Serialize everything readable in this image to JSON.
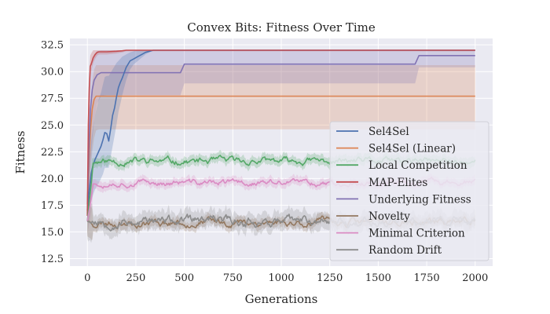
{
  "chart_data": {
    "type": "line",
    "title": "Convex Bits: Fitness Over Time",
    "xlabel": "Generations",
    "ylabel": "Fitness",
    "xlim": [
      -90,
      2090
    ],
    "ylim": [
      11.8,
      33.1
    ],
    "xticks": [
      0,
      250,
      500,
      750,
      1000,
      1250,
      1500,
      1750,
      2000
    ],
    "yticks": [
      12.5,
      15.0,
      17.5,
      20.0,
      22.5,
      25.0,
      27.5,
      30.0,
      32.5
    ],
    "ytick_labels": [
      "12.5",
      "15.0",
      "17.5",
      "20.0",
      "22.5",
      "25.0",
      "27.5",
      "30.0",
      "32.5"
    ],
    "grid": true,
    "legend_position": "center-right",
    "series": [
      {
        "name": "Sel4Sel",
        "color": "#4c72b0",
        "x": [
          0,
          10,
          20,
          30,
          40,
          50,
          60,
          70,
          80,
          90,
          100,
          110,
          120,
          130,
          140,
          150,
          160,
          170,
          180,
          190,
          200,
          220,
          240,
          260,
          280,
          300,
          320,
          340,
          360,
          400,
          2000
        ],
        "y": [
          17.0,
          19.0,
          20.5,
          21.3,
          21.8,
          22.2,
          22.6,
          23.0,
          23.6,
          24.3,
          24.2,
          23.5,
          24.6,
          25.9,
          26.6,
          27.6,
          28.5,
          29.0,
          29.4,
          29.9,
          30.4,
          31.0,
          31.2,
          31.4,
          31.6,
          31.8,
          31.9,
          32.0,
          32.0,
          32.0,
          32.0
        ],
        "band_low": [
          16.0,
          17.0,
          17.8,
          18.5,
          19.0,
          19.3,
          19.6,
          20.0,
          20.4,
          21.0,
          21.0,
          21.0,
          22.0,
          23.0,
          24.0,
          25.0,
          26.2,
          27.0,
          27.8,
          28.5,
          29.2,
          30.2,
          30.7,
          31.0,
          31.3,
          31.6,
          31.8,
          32.0,
          32.0,
          32.0,
          32.0
        ],
        "band_high": [
          18.0,
          21.5,
          23.5,
          25.0,
          26.0,
          26.8,
          27.5,
          28.0,
          28.8,
          29.5,
          29.6,
          29.6,
          29.9,
          30.2,
          30.5,
          30.8,
          31.0,
          31.2,
          31.4,
          31.5,
          31.6,
          31.8,
          31.9,
          32.0,
          32.0,
          32.0,
          32.0,
          32.0,
          32.0,
          32.0,
          32.0
        ]
      },
      {
        "name": "Sel4Sel (Linear)",
        "color": "#dd8452",
        "x": [
          0,
          8,
          16,
          25,
          35,
          45,
          60,
          2000
        ],
        "y": [
          17.6,
          21.5,
          24.5,
          26.5,
          27.4,
          27.7,
          27.7,
          27.7
        ],
        "band_low": [
          17.0,
          18.5,
          20.5,
          22.5,
          23.8,
          24.5,
          24.6,
          24.6
        ],
        "band_high": [
          18.0,
          24.0,
          27.0,
          29.0,
          30.2,
          30.6,
          30.6,
          30.6
        ]
      },
      {
        "name": "Local Competition",
        "color": "#55a868",
        "base": 21.6,
        "noise": 0.25,
        "band": 0.45,
        "seed": 11
      },
      {
        "name": "MAP-Elites",
        "color": "#c44e52",
        "x": [
          0,
          5,
          10,
          15,
          20,
          30,
          40,
          50,
          60,
          70,
          100,
          150,
          180,
          200,
          2000
        ],
        "y": [
          16.5,
          25.0,
          28.5,
          30.5,
          30.7,
          31.3,
          31.6,
          31.8,
          31.85,
          31.85,
          31.85,
          31.9,
          31.95,
          32.0,
          32.0
        ],
        "band_low": [
          16.0,
          21.0,
          26.0,
          29.0,
          30.0,
          30.8,
          31.2,
          31.5,
          31.6,
          31.6,
          31.6,
          31.7,
          31.8,
          31.9,
          31.9
        ],
        "band_high": [
          17.0,
          28.0,
          30.5,
          31.5,
          31.7,
          32.0,
          32.0,
          32.0,
          32.0,
          32.0,
          32.0,
          32.0,
          32.0,
          32.0,
          32.0
        ]
      },
      {
        "name": "Underlying Fitness",
        "color": "#8172b3",
        "x": [
          0,
          8,
          16,
          25,
          35,
          50,
          70,
          100,
          150,
          200,
          300,
          480,
          500,
          700,
          1000,
          1690,
          1710,
          2000
        ],
        "y": [
          17.0,
          23.0,
          26.5,
          28.3,
          29.2,
          29.7,
          29.9,
          29.9,
          29.9,
          29.9,
          29.9,
          29.9,
          30.7,
          30.7,
          30.7,
          30.7,
          31.5,
          31.5
        ],
        "band_low": [
          16.5,
          19.0,
          21.5,
          23.5,
          25.5,
          27.0,
          27.7,
          27.8,
          27.8,
          27.8,
          27.8,
          27.8,
          28.9,
          28.9,
          28.9,
          28.9,
          30.4,
          30.4
        ],
        "band_high": [
          17.5,
          26.5,
          29.5,
          31.0,
          31.6,
          31.9,
          32.0,
          32.0,
          32.0,
          32.0,
          32.0,
          32.0,
          32.0,
          32.0,
          32.0,
          32.0,
          32.0,
          32.0
        ]
      },
      {
        "name": "Novelty",
        "color": "#937860",
        "base": 15.9,
        "noise": 0.28,
        "band": 0.45,
        "seed": 23
      },
      {
        "name": "Minimal Criterion",
        "color": "#da8bc3",
        "base": 19.6,
        "noise": 0.22,
        "band": 0.4,
        "seed": 37
      },
      {
        "name": "Random Drift",
        "color": "#8c8c8c",
        "base": 16.0,
        "noise": 0.35,
        "band": 0.8,
        "seed": 53
      }
    ]
  }
}
